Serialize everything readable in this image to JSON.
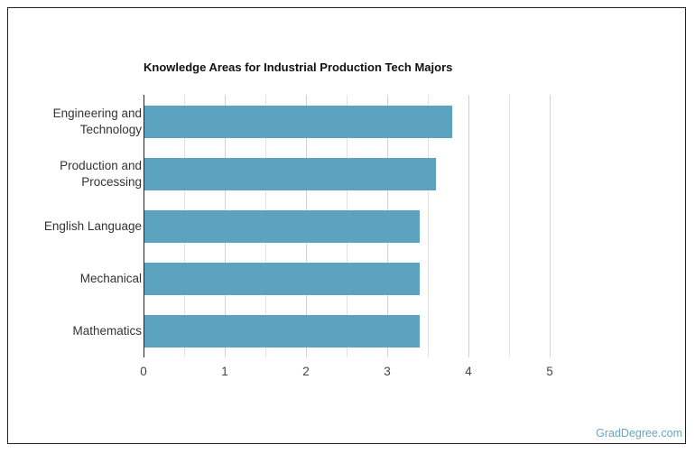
{
  "chart_data": {
    "type": "bar",
    "orientation": "horizontal",
    "title": "Knowledge Areas for Industrial Production Tech Majors",
    "categories": [
      "Engineering and Technology",
      "Production and Processing",
      "English Language",
      "Mechanical",
      "Mathematics"
    ],
    "category_lines": [
      [
        "Engineering and",
        "Technology"
      ],
      [
        "Production and",
        "Processing"
      ],
      [
        "English Language"
      ],
      [
        "Mechanical"
      ],
      [
        "Mathematics"
      ]
    ],
    "values": [
      3.8,
      3.6,
      3.4,
      3.4,
      3.4
    ],
    "xlabel": "",
    "ylabel": "",
    "xlim": [
      0,
      5
    ],
    "xticks": [
      "0",
      "1",
      "2",
      "3",
      "4",
      "5"
    ],
    "grid": true,
    "bar_color": "#5ba3bf"
  },
  "credit": "GradDegree.com"
}
